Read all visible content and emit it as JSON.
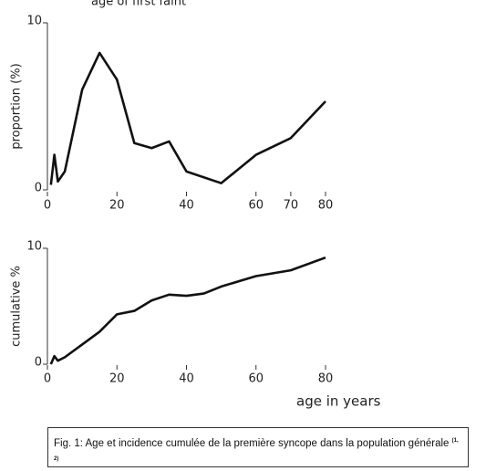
{
  "chart_data": [
    {
      "type": "line",
      "title": "age of first faint",
      "ylabel": "proportion (%)",
      "x": [
        1,
        2,
        3,
        5,
        10,
        15,
        20,
        25,
        30,
        35,
        40,
        50,
        60,
        70,
        80
      ],
      "series": [
        {
          "color": "#111111",
          "values": [
            0.3,
            2.1,
            0.5,
            1.1,
            6.0,
            8.2,
            6.6,
            2.8,
            2.5,
            2.9,
            1.1,
            0.4,
            2.1,
            3.1,
            5.3
          ]
        }
      ],
      "xlim": [
        0,
        80
      ],
      "xticks": [
        0,
        20,
        40,
        60,
        70,
        80
      ],
      "ylim": [
        0,
        10
      ],
      "yticks": [
        0,
        10
      ]
    },
    {
      "type": "line",
      "ylabel": "cumulative %",
      "xlabel": "age in years",
      "x": [
        1,
        2,
        3,
        5,
        10,
        15,
        20,
        25,
        30,
        35,
        40,
        45,
        50,
        60,
        70,
        80
      ],
      "series": [
        {
          "color": "#111111",
          "values": [
            0,
            0.7,
            0.3,
            0.6,
            1.7,
            2.8,
            4.3,
            4.6,
            5.5,
            6.0,
            5.9,
            6.1,
            6.7,
            7.6,
            8.1,
            9.2
          ]
        }
      ],
      "xlim": [
        0,
        80
      ],
      "xticks": [
        0,
        20,
        40,
        60,
        80
      ],
      "ylim": [
        0,
        10
      ],
      "yticks": [
        0,
        10
      ]
    }
  ],
  "caption": {
    "text": "Fig. 1: Age et incidence cumulée de la première syncope dans la population générale",
    "reference": "(1, 2)"
  }
}
